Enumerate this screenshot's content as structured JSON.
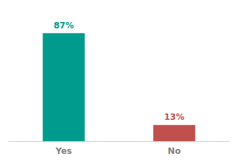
{
  "chart_data": {
    "type": "bar",
    "categories": [
      "Yes",
      "No"
    ],
    "values": [
      87,
      13
    ],
    "value_labels": [
      "87%",
      "13%"
    ],
    "colors": [
      "#009B8D",
      "#C0504D"
    ],
    "ylim": [
      0,
      100
    ],
    "grid": false,
    "data_labels": true,
    "tick_labels": "x"
  }
}
